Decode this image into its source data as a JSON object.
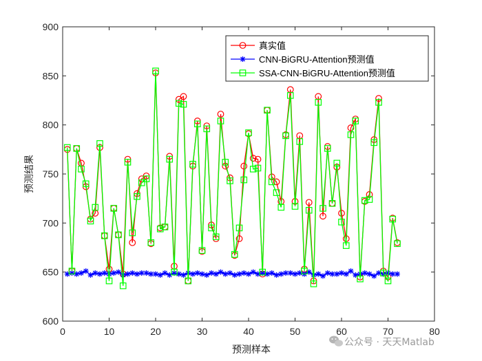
{
  "chart_data": {
    "type": "line",
    "title": "",
    "xlabel": "预测样本",
    "ylabel": "预测结果",
    "xlim": [
      0,
      80
    ],
    "ylim": [
      600,
      900
    ],
    "xticks": [
      0,
      10,
      20,
      30,
      40,
      50,
      60,
      70,
      80
    ],
    "yticks": [
      600,
      650,
      700,
      750,
      800,
      850,
      900
    ],
    "grid": false,
    "legend_position": "top-right",
    "x": [
      1,
      2,
      3,
      4,
      5,
      6,
      7,
      8,
      9,
      10,
      11,
      12,
      13,
      14,
      15,
      16,
      17,
      18,
      19,
      20,
      21,
      22,
      23,
      24,
      25,
      26,
      27,
      28,
      29,
      30,
      31,
      32,
      33,
      34,
      35,
      36,
      37,
      38,
      39,
      40,
      41,
      42,
      43,
      44,
      45,
      46,
      47,
      48,
      49,
      50,
      51,
      52,
      53,
      54,
      55,
      56,
      57,
      58,
      59,
      60,
      61,
      62,
      63,
      64,
      65,
      66,
      67,
      68,
      69,
      70,
      71,
      72
    ],
    "series": [
      {
        "name": "真实值",
        "color": "#ff0000",
        "marker": "circle",
        "values": [
          775,
          651,
          776,
          761,
          737,
          704,
          710,
          777,
          687,
          653,
          715,
          688,
          648,
          765,
          680,
          730,
          745,
          748,
          679,
          853,
          695,
          696,
          768,
          656,
          826,
          829,
          641,
          758,
          804,
          671,
          799,
          698,
          684,
          811,
          758,
          746,
          667,
          684,
          758,
          791,
          766,
          765,
          648,
          815,
          747,
          742,
          722,
          790,
          836,
          722,
          789,
          653,
          721,
          641,
          829,
          707,
          778,
          720,
          757,
          710,
          684,
          797,
          806,
          645,
          722,
          729,
          785,
          827,
          651,
          645,
          705,
          680
        ]
      },
      {
        "name": "CNN-BiGRU-Attention预测值",
        "color": "#0000ff",
        "marker": "star",
        "values": [
          648,
          649,
          648,
          649,
          651,
          647,
          649,
          648,
          649,
          648,
          649,
          650,
          647,
          648,
          649,
          648,
          649,
          649,
          648,
          648,
          647,
          649,
          647,
          649,
          648,
          647,
          649,
          648,
          649,
          648,
          647,
          649,
          648,
          650,
          648,
          649,
          647,
          648,
          649,
          648,
          650,
          648,
          649,
          648,
          649,
          647,
          648,
          649,
          649,
          648,
          649,
          648,
          650,
          647,
          648,
          646,
          649,
          648,
          648,
          649,
          648,
          651,
          647,
          648,
          649,
          648,
          646,
          649,
          648,
          649,
          648,
          648
        ]
      },
      {
        "name": "SSA-CNN-BiGRU-Attention预测值",
        "color": "#00ff00",
        "marker": "square",
        "values": [
          777,
          651,
          776,
          755,
          740,
          702,
          716,
          781,
          687,
          641,
          715,
          688,
          636,
          762,
          690,
          727,
          741,
          745,
          680,
          855,
          694,
          696,
          765,
          650,
          822,
          821,
          641,
          760,
          801,
          672,
          796,
          695,
          686,
          804,
          762,
          743,
          668,
          695,
          744,
          792,
          755,
          756,
          650,
          815,
          742,
          731,
          716,
          789,
          830,
          717,
          783,
          651,
          713,
          638,
          823,
          715,
          776,
          720,
          761,
          701,
          677,
          790,
          804,
          643,
          723,
          724,
          782,
          823,
          649,
          641,
          704,
          679
        ]
      }
    ]
  },
  "watermark": {
    "text": "公众号 · 天天Matlab",
    "icon": "wechat-icon"
  }
}
